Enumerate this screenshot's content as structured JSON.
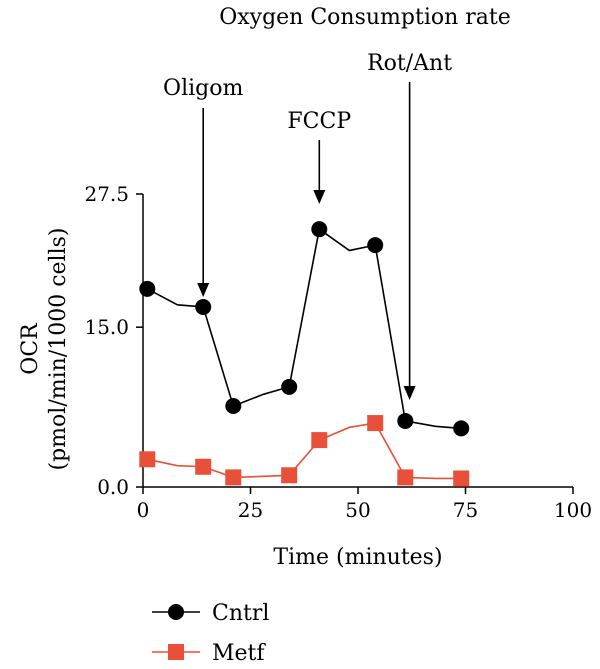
{
  "chart_data": {
    "type": "line",
    "title": "Oxygen Consumption rate",
    "xlabel": "Time (minutes)",
    "ylabel_line1": "OCR",
    "ylabel_line2": "(pmol/min/1000 cells)",
    "xlim": [
      0,
      100
    ],
    "ylim": [
      0,
      27.5
    ],
    "xticks": [
      0,
      25,
      50,
      75,
      100
    ],
    "yticks": [
      0.0,
      15.0,
      27.5
    ],
    "ytick_labels": [
      "0.0",
      "15.0",
      "27.5"
    ],
    "grid": false,
    "legend_position": "bottom-left",
    "series": [
      {
        "name": "Cntrl",
        "color": "#000000",
        "marker": "circle",
        "x": [
          1,
          8,
          14,
          21,
          28,
          34,
          41,
          48,
          54,
          61,
          68,
          74
        ],
        "y": [
          18.6,
          17.1,
          16.9,
          7.6,
          8.7,
          9.4,
          24.2,
          22.2,
          22.7,
          6.2,
          5.7,
          5.5
        ],
        "marker_indices": [
          0,
          2,
          3,
          5,
          6,
          8,
          9,
          11
        ]
      },
      {
        "name": "Metf",
        "color": "#e8503a",
        "marker": "square",
        "x": [
          1,
          8,
          14,
          21,
          28,
          34,
          41,
          48,
          54,
          61,
          68,
          74
        ],
        "y": [
          2.6,
          2.0,
          1.9,
          0.9,
          1.0,
          1.1,
          4.4,
          5.6,
          6.0,
          0.9,
          0.8,
          0.8
        ],
        "marker_indices": [
          0,
          2,
          3,
          5,
          6,
          8,
          9,
          11
        ]
      }
    ],
    "annotations": [
      {
        "label": "Oligom",
        "x": 14
      },
      {
        "label": "FCCP",
        "x": 41
      },
      {
        "label": "Rot/Ant",
        "x": 62
      }
    ]
  }
}
